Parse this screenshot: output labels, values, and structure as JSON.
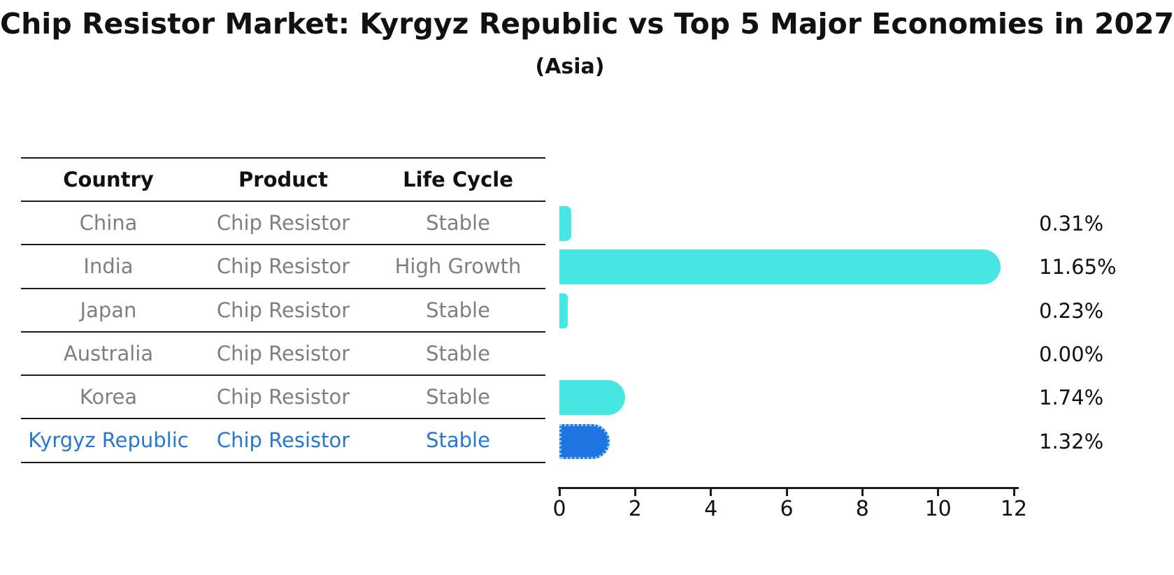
{
  "title": "Chip Resistor Market: Kyrgyz Republic vs Top 5 Major Economies in 2027",
  "subtitle": "(Asia)",
  "table": {
    "headers": [
      "Country",
      "Product",
      "Life Cycle"
    ],
    "rows": [
      {
        "country": "China",
        "product": "Chip Resistor",
        "life_cycle": "Stable",
        "highlight": false
      },
      {
        "country": "India",
        "product": "Chip Resistor",
        "life_cycle": "High Growth",
        "highlight": false
      },
      {
        "country": "Japan",
        "product": "Chip Resistor",
        "life_cycle": "Stable",
        "highlight": false
      },
      {
        "country": "Australia",
        "product": "Chip Resistor",
        "life_cycle": "Stable",
        "highlight": false
      },
      {
        "country": "Korea",
        "product": "Chip Resistor",
        "life_cycle": "Stable",
        "highlight": false
      },
      {
        "country": "Kyrgyz Republic",
        "product": "Chip Resistor",
        "life_cycle": "Stable",
        "highlight": true
      }
    ]
  },
  "chart_data": {
    "type": "bar",
    "orientation": "horizontal",
    "title": "Chip Resistor Market: Kyrgyz Republic vs Top 5 Major Economies in 2027",
    "subtitle": "(Asia)",
    "categories": [
      "China",
      "India",
      "Japan",
      "Australia",
      "Korea",
      "Kyrgyz Republic"
    ],
    "values": [
      0.31,
      11.65,
      0.23,
      0.0,
      1.74,
      1.32
    ],
    "value_labels": [
      "0.31%",
      "11.65%",
      "0.23%",
      "0.00%",
      "1.74%",
      "1.32%"
    ],
    "highlight_index": 5,
    "xlim": [
      0,
      12
    ],
    "x_ticks": [
      "0",
      "2",
      "4",
      "6",
      "8",
      "10",
      "12"
    ],
    "grid": false,
    "legend": "none"
  },
  "colors": {
    "bar_default": "#47E6E2",
    "bar_highlight": "#1E74E0",
    "bar_highlight_edge": "#8CCBF0",
    "text_muted": "#7F7F7F",
    "text_highlight": "#2878CC",
    "text_heading": "#111111",
    "rule": "#1A1A1A"
  }
}
